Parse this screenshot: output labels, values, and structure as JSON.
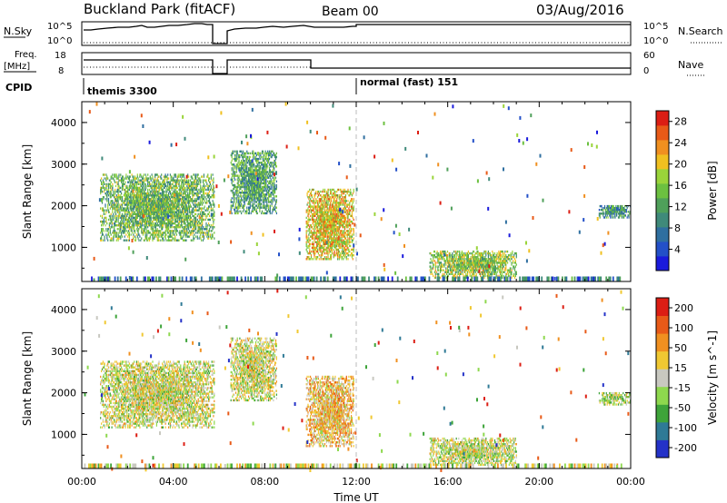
{
  "header": {
    "radar": "Buckland Park (fitACF)",
    "beam": "Beam 00",
    "date": "03/Aug/2016"
  },
  "strips": {
    "nsky_label": "N.Sky",
    "nsearch_label": "N.Search",
    "noise_ticks": [
      "10^5",
      "10^0"
    ],
    "freq_label_top": "Freq.",
    "freq_label_unit": "[MHz]",
    "freq_ticks": [
      "18",
      "8"
    ],
    "nave_label": "Nave",
    "nave_ticks": [
      "60",
      "0"
    ],
    "cpid_label": "CPID",
    "cpid_segments": [
      "themis 3300",
      "normal (fast) 151"
    ]
  },
  "chart_data": [
    {
      "type": "heatmap",
      "title": "",
      "xlabel": "Time UT",
      "ylabel": "Slant Range [km]",
      "x_ticks": [
        "00:00",
        "04:00",
        "08:00",
        "12:00",
        "16:00",
        "20:00",
        "00:00"
      ],
      "xlim_hours": [
        0,
        24
      ],
      "y_ticks": [
        1000,
        2000,
        3000,
        4000
      ],
      "ylim": [
        180,
        4500
      ],
      "colorbar": {
        "label": "Power [dB]",
        "ticks": [
          4,
          8,
          12,
          16,
          20,
          24,
          28
        ],
        "range": [
          0,
          30
        ],
        "colors": [
          "#1a1adc",
          "#2350c8",
          "#2f6fa0",
          "#3f8a7a",
          "#4fa05a",
          "#6cc040",
          "#9ad43a",
          "#f0c020",
          "#f09020",
          "#e85a18",
          "#dc1e14"
        ]
      },
      "regions": [
        {
          "t0": 0.8,
          "t1": 5.8,
          "r0": 1150,
          "r1": 2750,
          "level": 14
        },
        {
          "t0": 6.5,
          "t1": 8.5,
          "r0": 1800,
          "r1": 3300,
          "level": 12
        },
        {
          "t0": 9.8,
          "t1": 11.9,
          "r0": 700,
          "r1": 2400,
          "level": 20
        },
        {
          "t0": 15.2,
          "t1": 19.0,
          "r0": 250,
          "r1": 900,
          "level": 16
        },
        {
          "t0": 22.6,
          "t1": 24.0,
          "r0": 1700,
          "r1": 2000,
          "level": 10
        }
      ]
    },
    {
      "type": "heatmap",
      "title": "",
      "xlabel": "Time UT",
      "ylabel": "Slant Range [km]",
      "x_ticks": [
        "00:00",
        "04:00",
        "08:00",
        "12:00",
        "16:00",
        "20:00",
        "00:00"
      ],
      "xlim_hours": [
        0,
        24
      ],
      "y_ticks": [
        1000,
        2000,
        3000,
        4000
      ],
      "ylim": [
        180,
        4500
      ],
      "colorbar": {
        "label": "Velocity [m s^-1]",
        "ticks": [
          "200",
          "100",
          "50",
          "15",
          "-15",
          "-50",
          "-100",
          "-200"
        ],
        "range": [
          -250,
          250
        ],
        "colors": [
          "#2432c8",
          "#2f7a96",
          "#3ea43a",
          "#8ed84e",
          "#c8c8c0",
          "#f0c832",
          "#f09020",
          "#e85a18",
          "#dc1e14"
        ]
      },
      "regions": [
        {
          "t0": 0.8,
          "t1": 5.8,
          "r0": 1150,
          "r1": 2750,
          "level": 0
        },
        {
          "t0": 6.5,
          "t1": 8.5,
          "r0": 1800,
          "r1": 3300,
          "level": 0
        },
        {
          "t0": 9.8,
          "t1": 11.9,
          "r0": 700,
          "r1": 2400,
          "level": 60
        },
        {
          "t0": 15.2,
          "t1": 19.0,
          "r0": 250,
          "r1": 900,
          "level": -10
        },
        {
          "t0": 22.6,
          "t1": 24.0,
          "r0": 1700,
          "r1": 2000,
          "level": -20
        }
      ]
    }
  ]
}
